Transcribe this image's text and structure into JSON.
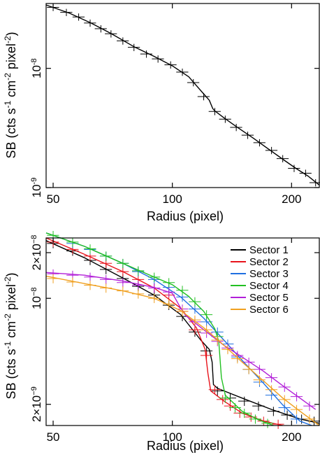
{
  "chart_data": [
    {
      "type": "scatter",
      "x_scale": "log",
      "y_scale": "log",
      "xlim": [
        48,
        235
      ],
      "ylim": [
        1e-09,
        3.5e-08
      ],
      "xlabel": "Radius (pixel)",
      "ylabel_html": [
        "SB (cts s",
        "-1",
        " cm",
        "-2",
        " pixel",
        "-2",
        ")"
      ],
      "x_ticks": [
        {
          "value": 50,
          "label": "50"
        },
        {
          "value": 100,
          "label": "100"
        },
        {
          "value": 200,
          "label": "200"
        }
      ],
      "y_ticks": [
        {
          "value": 1e-08,
          "mant": "10",
          "exp": "-8"
        },
        {
          "value": 1e-09,
          "mant": "10",
          "exp": "-9"
        }
      ],
      "series": [
        {
          "color": "#000000",
          "points": [
            {
              "x": 50,
              "y": 3.25e-08
            },
            {
              "x": 54,
              "y": 2.95e-08
            },
            {
              "x": 58,
              "y": 2.7e-08
            },
            {
              "x": 62,
              "y": 2.4e-08
            },
            {
              "x": 66,
              "y": 2.15e-08
            },
            {
              "x": 70,
              "y": 1.95e-08
            },
            {
              "x": 75,
              "y": 1.7e-08
            },
            {
              "x": 80,
              "y": 1.5e-08
            },
            {
              "x": 86,
              "y": 1.32e-08
            },
            {
              "x": 92,
              "y": 1.2e-08
            },
            {
              "x": 99,
              "y": 1.07e-08
            },
            {
              "x": 106,
              "y": 9.3e-09
            },
            {
              "x": 113,
              "y": 7.6e-09
            },
            {
              "x": 120,
              "y": 5.8e-09
            },
            {
              "x": 128,
              "y": 4.35e-09
            },
            {
              "x": 136,
              "y": 3.75e-09
            },
            {
              "x": 145,
              "y": 3.2e-09
            },
            {
              "x": 155,
              "y": 2.75e-09
            },
            {
              "x": 166,
              "y": 2.38e-09
            },
            {
              "x": 178,
              "y": 2.05e-09
            },
            {
              "x": 190,
              "y": 1.75e-09
            },
            {
              "x": 203,
              "y": 1.45e-09
            },
            {
              "x": 217,
              "y": 1.32e-09
            },
            {
              "x": 230,
              "y": 1.1e-09
            }
          ],
          "model": [
            [
              48,
              3.4e-08
            ],
            [
              55,
              2.9e-08
            ],
            [
              62,
              2.42e-08
            ],
            [
              70,
              1.96e-08
            ],
            [
              80,
              1.52e-08
            ],
            [
              90,
              1.26e-08
            ],
            [
              100,
              1.05e-08
            ],
            [
              110,
              8.5e-09
            ],
            [
              118,
              6.5e-09
            ],
            [
              124,
              5.4e-09
            ],
            [
              126.5,
              4.6e-09
            ],
            [
              128,
              4.4e-09
            ],
            [
              135,
              3.85e-09
            ],
            [
              145,
              3.25e-09
            ],
            [
              160,
              2.6e-09
            ],
            [
              175,
              2.1e-09
            ],
            [
              190,
              1.73e-09
            ],
            [
              205,
              1.45e-09
            ],
            [
              220,
              1.25e-09
            ],
            [
              235,
              1.05e-09
            ]
          ]
        }
      ]
    },
    {
      "type": "scatter",
      "x_scale": "log",
      "y_scale": "log",
      "xlim": [
        48,
        235
      ],
      "ylim": [
        1.45e-09,
        2.5e-08
      ],
      "xlabel": "Radius (pixel)",
      "ylabel_html": [
        "SB (cts s",
        "-1",
        " cm",
        "-2",
        " pixel",
        "-2",
        ")"
      ],
      "x_ticks": [
        {
          "value": 50,
          "label": "50"
        },
        {
          "value": 100,
          "label": "100"
        },
        {
          "value": 200,
          "label": "200"
        }
      ],
      "y_ticks": [
        {
          "value": 2e-08,
          "mant": "2×10",
          "exp": "−8"
        },
        {
          "value": 1e-08,
          "mant": "10",
          "exp": "−8"
        },
        {
          "value": 2e-09,
          "mant": "2×10",
          "exp": "−9"
        }
      ],
      "legend": {
        "position": "top-right"
      },
      "series": [
        {
          "name": "Sector 1",
          "color": "#000000",
          "points": [
            [
              50,
              2.3e-08
            ],
            [
              56,
              2.05e-08
            ],
            [
              62,
              1.78e-08
            ],
            [
              68,
              1.55e-08
            ],
            [
              75,
              1.35e-08
            ],
            [
              82,
              1.2e-08
            ],
            [
              90,
              1.05e-08
            ],
            [
              98,
              9e-09
            ],
            [
              106,
              7.6e-09
            ],
            [
              114,
              6e-09
            ],
            [
              122,
              4.5e-09
            ],
            [
              130,
              2.45e-09
            ],
            [
              140,
              2.2e-09
            ],
            [
              152,
              2.1e-09
            ],
            [
              165,
              1.95e-09
            ],
            [
              180,
              1.8e-09
            ],
            [
              195,
              1.7e-09
            ],
            [
              212,
              1.6e-09
            ],
            [
              228,
              1.55e-09
            ]
          ],
          "model": [
            [
              48,
              2.4e-08
            ],
            [
              60,
              1.85e-08
            ],
            [
              75,
              1.36e-08
            ],
            [
              90,
              1.05e-08
            ],
            [
              105,
              7.8e-09
            ],
            [
              118,
              5.3e-09
            ],
            [
              124,
              4.6e-09
            ],
            [
              126,
              3.8e-09
            ],
            [
              127,
              2.7e-09
            ],
            [
              130,
              2.55e-09
            ],
            [
              150,
              2.2e-09
            ],
            [
              180,
              1.83e-09
            ],
            [
              210,
              1.6e-09
            ],
            [
              235,
              1.5e-09
            ]
          ]
        },
        {
          "name": "Sector 2",
          "color": "#e8131b",
          "points": [
            [
              50,
              2.35e-08
            ],
            [
              56,
              2.1e-08
            ],
            [
              62,
              1.9e-08
            ],
            [
              68,
              1.7e-08
            ],
            [
              75,
              1.5e-08
            ],
            [
              82,
              1.33e-08
            ],
            [
              90,
              1.17e-08
            ],
            [
              98,
              1.05e-08
            ],
            [
              106,
              8.2e-09
            ],
            [
              114,
              6.2e-09
            ],
            [
              122,
              4.2e-09
            ],
            [
              128,
              2.5e-09
            ],
            [
              134,
              2.15e-09
            ],
            [
              140,
              1.95e-09
            ],
            [
              148,
              1.75e-09
            ],
            [
              158,
              1.65e-09
            ],
            [
              170,
              1.55e-09
            ],
            [
              185,
              1.48e-09
            ]
          ],
          "model": [
            [
              48,
              2.5e-08
            ],
            [
              60,
              1.95e-08
            ],
            [
              75,
              1.5e-08
            ],
            [
              90,
              1.17e-08
            ],
            [
              105,
              8.6e-09
            ],
            [
              115,
              6.4e-09
            ],
            [
              121,
              4.6e-09
            ],
            [
              123,
              3.2e-09
            ],
            [
              125,
              2.45e-09
            ],
            [
              135,
              2.1e-09
            ],
            [
              150,
              1.75e-09
            ],
            [
              170,
              1.55e-09
            ],
            [
              190,
              1.45e-09
            ]
          ]
        },
        {
          "name": "Sector 3",
          "color": "#1f6fe0",
          "points": [
            [
              50,
              2.5e-08
            ],
            [
              56,
              2.3e-08
            ],
            [
              62,
              2.1e-08
            ],
            [
              68,
              1.9e-08
            ],
            [
              75,
              1.7e-08
            ],
            [
              82,
              1.5e-08
            ],
            [
              90,
              1.33e-08
            ],
            [
              98,
              1.18e-08
            ],
            [
              106,
              1.02e-08
            ],
            [
              114,
              8.5e-09
            ],
            [
              122,
              7e-09
            ],
            [
              130,
              6e-09
            ],
            [
              138,
              5e-09
            ],
            [
              146,
              4.1e-09
            ],
            [
              156,
              3.4e-09
            ],
            [
              166,
              2.8e-09
            ],
            [
              178,
              2.3e-09
            ],
            [
              192,
              1.9e-09
            ],
            [
              206,
              1.6e-09
            ]
          ],
          "model": [
            [
              48,
              2.7e-08
            ],
            [
              60,
              2.2e-08
            ],
            [
              75,
              1.7e-08
            ],
            [
              90,
              1.33e-08
            ],
            [
              105,
              1.02e-08
            ],
            [
              120,
              7.4e-09
            ],
            [
              135,
              5.3e-09
            ],
            [
              150,
              3.9e-09
            ],
            [
              170,
              2.75e-09
            ],
            [
              190,
              1.98e-09
            ],
            [
              210,
              1.55e-09
            ],
            [
              225,
              1.45e-09
            ]
          ]
        },
        {
          "name": "Sector 4",
          "color": "#22c022",
          "points": [
            [
              50,
              2.6e-08
            ],
            [
              56,
              2.35e-08
            ],
            [
              62,
              2.12e-08
            ],
            [
              68,
              1.9e-08
            ],
            [
              75,
              1.7e-08
            ],
            [
              82,
              1.52e-08
            ],
            [
              90,
              1.38e-08
            ],
            [
              98,
              1.27e-08
            ],
            [
              106,
              1.13e-08
            ],
            [
              114,
              9.5e-09
            ],
            [
              122,
              7.8e-09
            ],
            [
              130,
              5.6e-09
            ],
            [
              136,
              2.2e-09
            ],
            [
              144,
              1.9e-09
            ],
            [
              152,
              1.75e-09
            ],
            [
              162,
              1.6e-09
            ],
            [
              174,
              1.5e-09
            ]
          ],
          "model": [
            [
              48,
              2.7e-08
            ],
            [
              60,
              2.2e-08
            ],
            [
              75,
              1.7e-08
            ],
            [
              90,
              1.38e-08
            ],
            [
              100,
              1.23e-08
            ],
            [
              110,
              1.03e-08
            ],
            [
              120,
              8.2e-09
            ],
            [
              128,
              6.3e-09
            ],
            [
              131,
              5.2e-09
            ],
            [
              133,
              3e-09
            ],
            [
              136,
              2.3e-09
            ],
            [
              150,
              1.8e-09
            ],
            [
              165,
              1.58e-09
            ],
            [
              180,
              1.45e-09
            ]
          ]
        },
        {
          "name": "Sector 5",
          "color": "#b21fd8",
          "points": [
            [
              50,
              1.45e-08
            ],
            [
              56,
              1.42e-08
            ],
            [
              62,
              1.38e-08
            ],
            [
              68,
              1.33e-08
            ],
            [
              75,
              1.27e-08
            ],
            [
              82,
              1.22e-08
            ],
            [
              90,
              1.17e-08
            ],
            [
              98,
              1.1e-08
            ],
            [
              106,
              8.5e-09
            ],
            [
              114,
              7e-09
            ],
            [
              122,
              5.9e-09
            ],
            [
              130,
              5.2e-09
            ],
            [
              138,
              4.7e-09
            ],
            [
              146,
              4.2e-09
            ],
            [
              156,
              3.8e-09
            ],
            [
              166,
              3.4e-09
            ],
            [
              178,
              3e-09
            ],
            [
              192,
              2.6e-09
            ],
            [
              206,
              2.25e-09
            ],
            [
              222,
              1.95e-09
            ]
          ],
          "model": [
            [
              48,
              1.48e-08
            ],
            [
              60,
              1.42e-08
            ],
            [
              75,
              1.3e-08
            ],
            [
              90,
              1.18e-08
            ],
            [
              100,
              1.08e-08
            ],
            [
              104,
              9e-09
            ],
            [
              108,
              7.7e-09
            ],
            [
              120,
              6.2e-09
            ],
            [
              135,
              4.9e-09
            ],
            [
              150,
              4.1e-09
            ],
            [
              170,
              3.3e-09
            ],
            [
              190,
              2.65e-09
            ],
            [
              210,
              2.2e-09
            ],
            [
              230,
              1.85e-09
            ]
          ]
        },
        {
          "name": "Sector 6",
          "color": "#f0a020",
          "points": [
            [
              50,
              1.35e-08
            ],
            [
              56,
              1.28e-08
            ],
            [
              62,
              1.22e-08
            ],
            [
              68,
              1.17e-08
            ],
            [
              75,
              1.12e-08
            ],
            [
              82,
              1.07e-08
            ],
            [
              90,
              1e-08
            ],
            [
              98,
              9.2e-09
            ],
            [
              106,
              8.2e-09
            ],
            [
              114,
              7.2e-09
            ],
            [
              122,
              6.2e-09
            ],
            [
              130,
              5.3e-09
            ],
            [
              138,
              4.6e-09
            ],
            [
              146,
              4e-09
            ],
            [
              156,
              3.4e-09
            ],
            [
              166,
              2.9e-09
            ],
            [
              178,
              2.5e-09
            ],
            [
              192,
              2.15e-09
            ],
            [
              206,
              1.85e-09
            ],
            [
              222,
              1.6e-09
            ]
          ],
          "model": [
            [
              48,
              1.4e-08
            ],
            [
              60,
              1.25e-08
            ],
            [
              75,
              1.12e-08
            ],
            [
              90,
              1e-08
            ],
            [
              105,
              8.3e-09
            ],
            [
              120,
              6.4e-09
            ],
            [
              135,
              4.9e-09
            ],
            [
              150,
              3.8e-09
            ],
            [
              170,
              2.85e-09
            ],
            [
              190,
              2.2e-09
            ],
            [
              210,
              1.8e-09
            ],
            [
              235,
              1.45e-09
            ]
          ]
        }
      ]
    }
  ]
}
